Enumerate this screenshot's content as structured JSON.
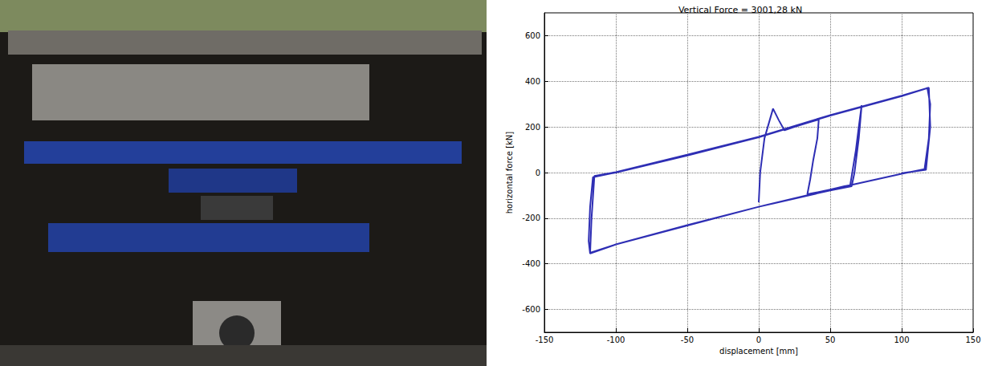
{
  "chart_data": {
    "type": "line",
    "title": "Vertical Force = 3001,28 kN",
    "x_label": "displacement [mm]",
    "y_label": "horizontal force [kN]",
    "x": [
      0,
      1,
      4,
      10,
      14,
      18,
      25,
      30,
      35,
      42,
      41,
      38,
      36,
      34,
      50,
      60,
      64,
      68,
      70,
      72,
      70,
      67,
      65,
      50,
      0,
      -50,
      -100,
      -118,
      -119,
      -118,
      -116,
      -100,
      -50,
      0,
      50,
      100,
      118,
      120,
      119,
      116,
      100,
      50,
      0,
      -50,
      -100,
      -118,
      -117,
      -115,
      -100,
      -50,
      0,
      50,
      100,
      119,
      120,
      117,
      100
    ],
    "values": [
      -130,
      0,
      150,
      280,
      230,
      185,
      200,
      210,
      220,
      232,
      150,
      50,
      -30,
      -95,
      -75,
      -60,
      -55,
      100,
      200,
      295,
      150,
      0,
      -60,
      -78,
      -150,
      -232,
      -315,
      -355,
      -300,
      -150,
      -20,
      0,
      75,
      155,
      250,
      335,
      370,
      300,
      150,
      15,
      -5,
      -75,
      -150,
      -230,
      -315,
      -352,
      -200,
      -15,
      2,
      78,
      157,
      252,
      337,
      372,
      200,
      12,
      -3
    ],
    "color": "#2e2eb4",
    "xlim": [
      -150,
      150
    ],
    "xticks": [
      -150,
      -100,
      -50,
      0,
      50,
      100,
      150
    ],
    "ylim": [
      -700,
      700
    ],
    "yticks": [
      -600,
      -400,
      -200,
      0,
      200,
      400,
      600
    ],
    "grid": true
  }
}
